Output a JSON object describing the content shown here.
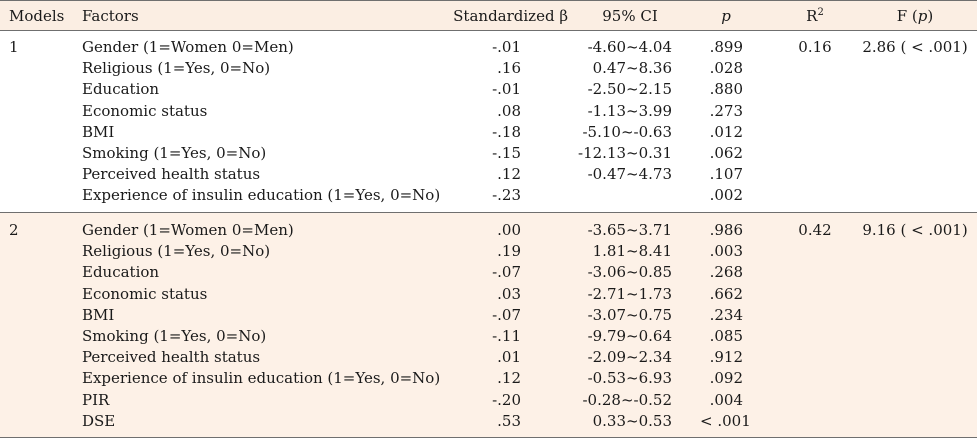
{
  "headers": {
    "models": "Models",
    "factors": "Factors",
    "beta": "Standardized β",
    "ci": "95% CI",
    "p": "p",
    "r2_base": "R",
    "r2_sup": "2",
    "f_prefix": "F (",
    "f_p": "p",
    "f_suffix": ")"
  },
  "models": [
    {
      "id": "1",
      "r2": "0.16",
      "f": "2.86 ( < .001)",
      "rows": [
        {
          "factor": "Gender (1=Women 0=Men)",
          "beta": "-.01",
          "ci": "-4.60~4.04",
          "p": ".899"
        },
        {
          "factor": "Religious (1=Yes, 0=No)",
          "beta": ".16",
          "ci": "0.47~8.36",
          "p": ".028"
        },
        {
          "factor": "Education",
          "beta": "-.01",
          "ci": "-2.50~2.15",
          "p": ".880"
        },
        {
          "factor": "Economic status",
          "beta": ".08",
          "ci": "-1.13~3.99",
          "p": ".273"
        },
        {
          "factor": "BMI",
          "beta": "-.18",
          "ci": "-5.10~-0.63",
          "p": ".012"
        },
        {
          "factor": "Smoking (1=Yes, 0=No)",
          "beta": "-.15",
          "ci": "-12.13~0.31",
          "p": ".062"
        },
        {
          "factor": "Perceived health status",
          "beta": ".12",
          "ci": "-0.47~4.73",
          "p": ".107"
        },
        {
          "factor": "Experience of insulin education (1=Yes, 0=No)",
          "beta": "-.23",
          "ci": "",
          "p": ".002"
        }
      ]
    },
    {
      "id": "2",
      "r2": "0.42",
      "f": "9.16 ( < .001)",
      "rows": [
        {
          "factor": "Gender (1=Women 0=Men)",
          "beta": ".00",
          "ci": "-3.65~3.71",
          "p": ".986"
        },
        {
          "factor": "Religious (1=Yes, 0=No)",
          "beta": ".19",
          "ci": "1.81~8.41",
          "p": ".003"
        },
        {
          "factor": "Education",
          "beta": "-.07",
          "ci": "-3.06~0.85",
          "p": ".268"
        },
        {
          "factor": "Economic status",
          "beta": ".03",
          "ci": "-2.71~1.73",
          "p": ".662"
        },
        {
          "factor": "BMI",
          "beta": "-.07",
          "ci": "-3.07~0.75",
          "p": ".234"
        },
        {
          "factor": "Smoking (1=Yes, 0=No)",
          "beta": "-.11",
          "ci": "-9.79~0.64",
          "p": ".085"
        },
        {
          "factor": "Perceived health status",
          "beta": ".01",
          "ci": "-2.09~2.34",
          "p": ".912"
        },
        {
          "factor": "Experience of insulin education (1=Yes, 0=No)",
          "beta": ".12",
          "ci": "-0.53~6.93",
          "p": ".092"
        },
        {
          "factor": "PIR",
          "beta": "-.20",
          "ci": "-0.28~-0.52",
          "p": ".004"
        },
        {
          "factor": "DSE",
          "beta": ".53",
          "ci": "0.33~0.53",
          "p": "< .001"
        }
      ]
    }
  ]
}
